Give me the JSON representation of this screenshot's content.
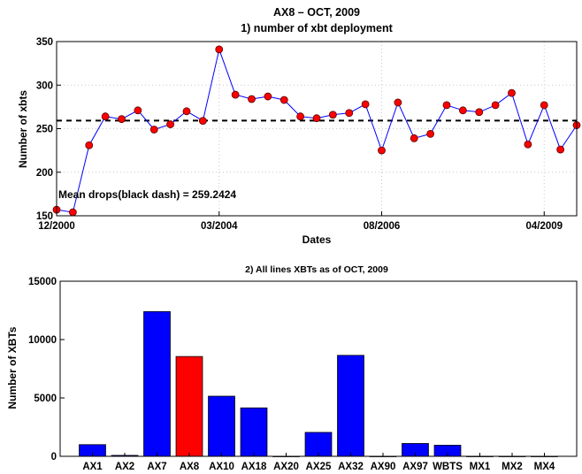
{
  "chart_data": [
    {
      "type": "line",
      "title": "AX8 – OCT, 2009",
      "subtitle": "1) number of xbt deployment",
      "xlabel": "Dates",
      "ylabel": "Number of xbts",
      "x_tick_labels": [
        "12/2000",
        "03/2004",
        "08/2006",
        "04/2009"
      ],
      "x_tick_index": [
        0,
        10,
        20,
        30
      ],
      "y_ticks": [
        150,
        200,
        250,
        300,
        350
      ],
      "ylim": [
        150,
        350
      ],
      "grid": "dotted",
      "values": [
        157,
        154,
        231,
        264,
        261,
        271,
        249,
        255,
        270,
        259,
        341,
        289,
        284,
        287,
        283,
        264,
        262,
        266,
        268,
        278,
        225,
        280,
        239,
        244,
        277,
        271,
        269,
        277,
        291,
        232,
        277,
        226,
        254
      ],
      "line_color": "#0000ff",
      "marker_color": "#ff0000",
      "mean": 259.2424,
      "mean_style": "black dash",
      "annotation": "Mean drops(black dash) = 259.2424"
    },
    {
      "type": "bar",
      "title": "2) All lines XBTs as of OCT, 2009",
      "xlabel": "",
      "ylabel": "Number of XBTs",
      "categories": [
        "AX1",
        "AX2",
        "AX7",
        "AX8",
        "AX10",
        "AX18",
        "AX20",
        "AX25",
        "AX32",
        "AX90",
        "AX97",
        "WBTS",
        "MX1",
        "MX2",
        "MX4"
      ],
      "values": [
        1000,
        80,
        12400,
        8550,
        5150,
        4150,
        0,
        2050,
        8650,
        0,
        1100,
        950,
        0,
        0,
        0
      ],
      "highlight": "AX8",
      "bar_color": "#0000ff",
      "highlight_color": "#ff0000",
      "y_ticks": [
        0,
        5000,
        10000,
        15000
      ],
      "ylim": [
        0,
        15000
      ]
    }
  ]
}
